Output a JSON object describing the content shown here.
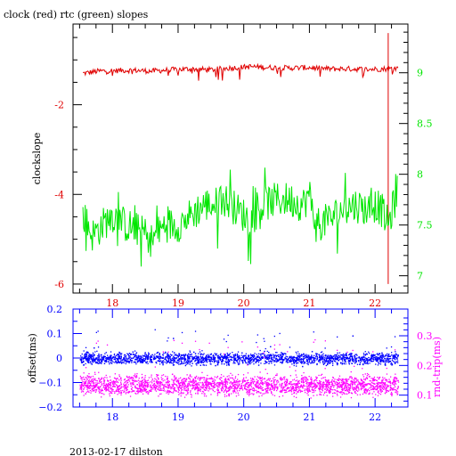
{
  "title": "clock (red) rtc (green) slopes",
  "footer": "2013-02-17 dilston",
  "colors": {
    "frame": "#000000",
    "clock": "#e00000",
    "rtc": "#00e600",
    "offset": "#0000ff",
    "rndtrip": "#ff00ff"
  },
  "chart_data": [
    {
      "type": "line",
      "ylabel": "clockslope",
      "x_ticks": [
        "18",
        "19",
        "20",
        "21",
        "22"
      ],
      "x_tick_values": [
        18,
        19,
        20,
        21,
        22
      ],
      "xlim": [
        17.4,
        22.5
      ],
      "ylim_left": [
        -6.2,
        -0.2
      ],
      "ylim_right": [
        6.83,
        9.48
      ],
      "y_ticks_left": [
        "-2",
        "-4",
        "-6"
      ],
      "y_tick_values_left": [
        -2,
        -4,
        -6
      ],
      "y_ticks_right": [
        "9",
        "8.5",
        "8",
        "7.5",
        "7"
      ],
      "y_tick_values_right": [
        9,
        8.5,
        8,
        7.5,
        7
      ],
      "series": [
        {
          "axis": "left",
          "x": [
            17.55,
            17.8,
            18.0,
            18.3,
            18.6,
            18.9,
            19.2,
            19.5,
            19.8,
            20.1,
            20.4,
            20.7,
            21.0,
            21.3,
            21.6,
            21.9,
            22.1,
            22.2,
            22.35
          ],
          "y": [
            -1.3,
            -1.25,
            -1.24,
            -1.23,
            -1.25,
            -1.22,
            -1.2,
            -1.22,
            -1.18,
            -1.15,
            -1.17,
            -1.18,
            -1.17,
            -1.2,
            -1.2,
            -1.21,
            -1.2,
            -1.2,
            -1.18
          ],
          "spike_x": 22.2,
          "spike_range": [
            -6.0,
            -0.4
          ]
        },
        {
          "axis": "right",
          "x": [
            17.55,
            17.7,
            17.85,
            18.0,
            18.2,
            18.4,
            18.6,
            18.8,
            19.0,
            19.2,
            19.4,
            19.55,
            19.7,
            19.9,
            20.1,
            20.3,
            20.5,
            20.7,
            20.9,
            21.0,
            21.1,
            21.3,
            21.5,
            21.7,
            21.9,
            22.0,
            22.1,
            22.2,
            22.35
          ],
          "y": [
            7.6,
            7.4,
            7.5,
            7.6,
            7.5,
            7.45,
            7.35,
            7.5,
            7.5,
            7.6,
            7.7,
            7.7,
            7.75,
            7.65,
            7.55,
            7.7,
            7.75,
            7.75,
            7.7,
            7.8,
            7.5,
            7.55,
            7.65,
            7.7,
            7.65,
            7.7,
            7.65,
            7.5,
            7.85
          ]
        }
      ]
    },
    {
      "type": "scatter",
      "ylabel_left": "offset(ms)",
      "ylabel_right": "rnd-trip(ms)",
      "x_ticks": [
        "18",
        "19",
        "20",
        "21",
        "22"
      ],
      "x_tick_values": [
        18,
        19,
        20,
        21,
        22
      ],
      "xlim": [
        17.4,
        22.5
      ],
      "ylim_left": [
        -0.2,
        0.2
      ],
      "ylim_right": [
        0.06,
        0.39
      ],
      "y_ticks_left": [
        "0.2",
        "0.1",
        "0",
        "−0.1",
        "−0.2"
      ],
      "y_tick_values_left": [
        0.2,
        0.1,
        0,
        -0.1,
        -0.2
      ],
      "y_ticks_right": [
        "0.3",
        "0.2",
        "0.1"
      ],
      "y_tick_values_right": [
        0.3,
        0.2,
        0.1
      ],
      "series": [
        {
          "axis": "left",
          "x_range": [
            17.5,
            22.35
          ],
          "center": 0.0,
          "spread": 0.015
        },
        {
          "axis": "right",
          "x_range": [
            17.5,
            22.35
          ],
          "center": 0.135,
          "spread": 0.02
        }
      ]
    }
  ]
}
